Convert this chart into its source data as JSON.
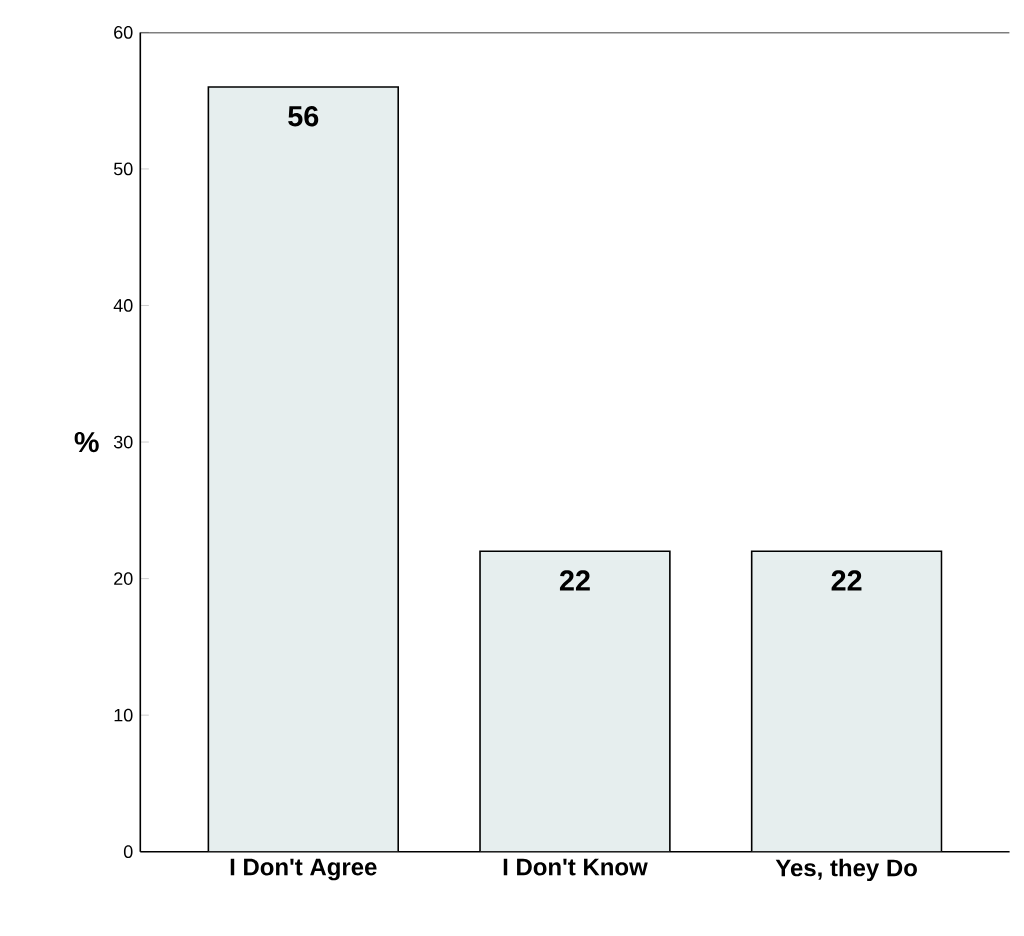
{
  "chart_data": {
    "type": "bar",
    "ylabel": "%",
    "categories": [
      "I Don't Agree",
      "I Don't Know",
      "Yes, they Do"
    ],
    "values": [
      56,
      22,
      22
    ],
    "color": "#e6eeee",
    "ylim": [
      0,
      60
    ],
    "yticks": [
      0,
      10,
      20,
      30,
      40,
      50,
      60
    ],
    "data_labels": true
  }
}
